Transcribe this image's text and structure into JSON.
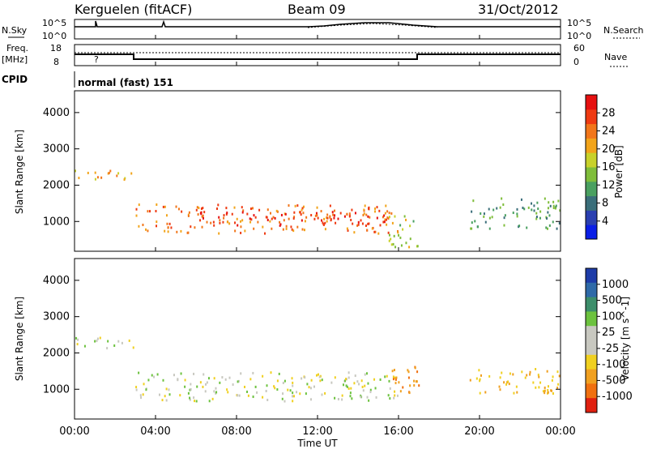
{
  "header": {
    "station": "Kerguelen (fitACF)",
    "beam": "Beam 09",
    "date": "31/Oct/2012"
  },
  "status_panels": {
    "nsky_label": "N.Sky",
    "nsearch_label": "N.Search",
    "noise_ticks": [
      "10^5",
      "10^0"
    ],
    "freq_label": [
      "Freq.",
      "[MHz]"
    ],
    "freq_ticks": [
      "18",
      "8"
    ],
    "nave_label": "Nave",
    "nave_ticks": [
      "60",
      "0"
    ],
    "cpid_label": "CPID",
    "cpid_value": "normal (fast) 151",
    "freq_marker": "?"
  },
  "panels": {
    "power_ylabel": "Slant Range [km]",
    "velocity_ylabel": "Slant Range [km]",
    "xlabel": "Time UT"
  },
  "colorbars": {
    "power": {
      "label": "Power [dB]",
      "ticks": [
        "28",
        "24",
        "20",
        "16",
        "12",
        "8",
        "4"
      ],
      "colors": [
        "#0a1ee6",
        "#2a3fb0",
        "#3a6e7a",
        "#4aa060",
        "#7fbd3a",
        "#c8d12a",
        "#f2a41a",
        "#f2761a",
        "#ef3a12",
        "#e61010"
      ]
    },
    "velocity": {
      "label": "Velocity [m s^-1]",
      "ticks": [
        "1000",
        "500",
        "100",
        "25",
        "-25",
        "-100",
        "-500",
        "-1000"
      ],
      "colors": [
        "#1e3ca8",
        "#2f6aa8",
        "#3c8e6a",
        "#6cc23e",
        "#c8c8c0",
        "#c8c8c0",
        "#f0d020",
        "#f0a020",
        "#f07010",
        "#e02010"
      ]
    }
  },
  "chart_data": {
    "type": "heatmap",
    "x_ticks": [
      "00:00",
      "04:00",
      "08:00",
      "12:00",
      "16:00",
      "20:00",
      "00:00"
    ],
    "x_range_hours": [
      0,
      24
    ],
    "y_ticks": [
      "4000",
      "3000",
      "2000",
      "1000"
    ],
    "y_range_km": [
      180,
      4600
    ],
    "grid": false,
    "description_regions_power": [
      {
        "t0": 0.0,
        "t1": 3.0,
        "r0": 2150,
        "r1": 2450,
        "level": 20
      },
      {
        "t0": 3.0,
        "t1": 16.0,
        "r0": 700,
        "r1": 1500,
        "level": 24
      },
      {
        "t0": 6.0,
        "t1": 15.5,
        "r0": 900,
        "r1": 1300,
        "level": 28
      },
      {
        "t0": 15.5,
        "t1": 17.0,
        "r0": 300,
        "r1": 1200,
        "level": 16
      },
      {
        "t0": 19.5,
        "t1": 24.0,
        "r0": 800,
        "r1": 1700,
        "level": 12
      }
    ],
    "description_regions_velocity": [
      {
        "t0": 0.0,
        "t1": 3.0,
        "r0": 2150,
        "r1": 2450,
        "vel": 0
      },
      {
        "t0": 3.0,
        "t1": 16.0,
        "r0": 700,
        "r1": 1500,
        "vel": 0
      },
      {
        "t0": 15.5,
        "t1": 17.0,
        "r0": 800,
        "r1": 1700,
        "vel": -500
      },
      {
        "t0": 19.5,
        "t1": 24.0,
        "r0": 900,
        "r1": 1600,
        "vel": -100
      }
    ]
  }
}
